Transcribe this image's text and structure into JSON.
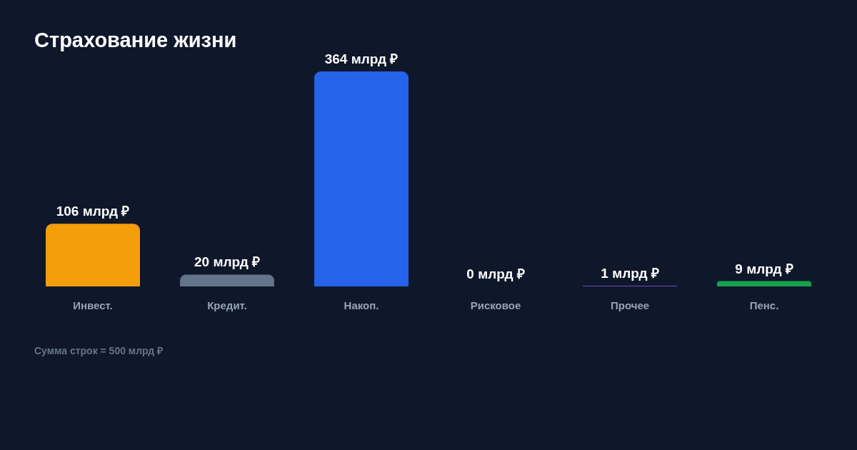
{
  "chart_data": {
    "type": "bar",
    "title": "Страхование жизни",
    "categories": [
      "Инвест.",
      "Кредит.",
      "Накоп.",
      "Рисковое",
      "Прочее",
      "Пенс."
    ],
    "values": [
      106,
      20,
      364,
      0,
      1,
      9
    ],
    "colors": [
      "#f59e0b",
      "#64748b",
      "#2563eb",
      "#dc2626",
      "#8b5cf6",
      "#16a34a"
    ],
    "value_labels": [
      "106 млрд ₽",
      "20 млрд ₽",
      "364 млрд ₽",
      "0 млрд ₽",
      "1 млрд ₽",
      "9 млрд ₽"
    ],
    "annotations": [
      "Сумма строк = 500 млрд ₽"
    ]
  }
}
